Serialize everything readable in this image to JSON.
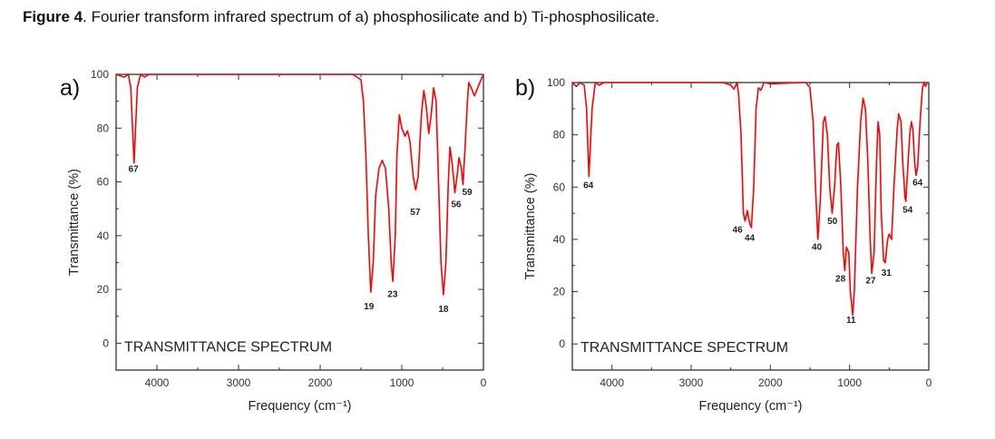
{
  "caption": {
    "label": "Figure 4",
    "text": ". Fourier transform infrared spectrum of a) phosphosilicate and b) Ti-phosphosilicate."
  },
  "chart_data": [
    {
      "type": "line",
      "panel_label": "a)",
      "annotation": "TRANSMITTANCE SPECTRUM",
      "xlabel": "Frequency (cm⁻¹)",
      "ylabel": "Transmittance (%)",
      "xlim": [
        4500,
        0
      ],
      "ylim": [
        -10,
        100
      ],
      "xticks": [
        4000,
        3000,
        2000,
        1000,
        0
      ],
      "yticks": [
        0,
        20,
        40,
        60,
        80,
        100
      ],
      "color": "#ff0000",
      "series": [
        {
          "name": "phosphosilicate",
          "points": [
            [
              4500,
              100
            ],
            [
              4400,
              99
            ],
            [
              4350,
              100
            ],
            [
              4320,
              95
            ],
            [
              4280,
              67
            ],
            [
              4240,
              95
            ],
            [
              4200,
              100
            ],
            [
              4150,
              99
            ],
            [
              4100,
              100
            ],
            [
              1600,
              100
            ],
            [
              1550,
              99
            ],
            [
              1500,
              98
            ],
            [
              1470,
              90
            ],
            [
              1440,
              70
            ],
            [
              1410,
              40
            ],
            [
              1380,
              19
            ],
            [
              1350,
              30
            ],
            [
              1320,
              55
            ],
            [
              1280,
              65
            ],
            [
              1240,
              68
            ],
            [
              1200,
              65
            ],
            [
              1160,
              50
            ],
            [
              1130,
              30
            ],
            [
              1110,
              23
            ],
            [
              1080,
              40
            ],
            [
              1060,
              70
            ],
            [
              1030,
              85
            ],
            [
              1000,
              80
            ],
            [
              960,
              77
            ],
            [
              930,
              79
            ],
            [
              900,
              75
            ],
            [
              860,
              62
            ],
            [
              830,
              57
            ],
            [
              800,
              62
            ],
            [
              760,
              85
            ],
            [
              730,
              94
            ],
            [
              700,
              88
            ],
            [
              670,
              78
            ],
            [
              640,
              85
            ],
            [
              610,
              95
            ],
            [
              580,
              90
            ],
            [
              550,
              60
            ],
            [
              520,
              30
            ],
            [
              490,
              18
            ],
            [
              460,
              30
            ],
            [
              430,
              60
            ],
            [
              410,
              73
            ],
            [
              380,
              66
            ],
            [
              350,
              56
            ],
            [
              320,
              63
            ],
            [
              300,
              69
            ],
            [
              270,
              65
            ],
            [
              250,
              59
            ],
            [
              230,
              70
            ],
            [
              200,
              88
            ],
            [
              180,
              97
            ],
            [
              150,
              95
            ],
            [
              110,
              92
            ],
            [
              70,
              95
            ],
            [
              30,
              98
            ],
            [
              0,
              100
            ]
          ]
        }
      ],
      "peak_labels": [
        {
          "text": "67",
          "x": 4287,
          "y": 65
        },
        {
          "text": "19",
          "x": 1403,
          "y": 14
        },
        {
          "text": "23",
          "x": 1113,
          "y": 18.5
        },
        {
          "text": "57",
          "x": 835,
          "y": 49
        },
        {
          "text": "18",
          "x": 490,
          "y": 13
        },
        {
          "text": "56",
          "x": 334,
          "y": 52
        },
        {
          "text": "59",
          "x": 200,
          "y": 56.5
        }
      ]
    },
    {
      "type": "line",
      "panel_label": "b)",
      "annotation": "TRANSMITTANCE SPECTRUM",
      "xlabel": "Frequency (cm⁻¹)",
      "ylabel": "Transmittance (%)",
      "xlim": [
        4500,
        0
      ],
      "ylim": [
        -10,
        100
      ],
      "xticks": [
        4000,
        3000,
        2000,
        1000,
        0
      ],
      "yticks": [
        0,
        20,
        40,
        60,
        80,
        100
      ],
      "color": "#ff0000",
      "series": [
        {
          "name": "Ti-phosphosilicate",
          "points": [
            [
              4500,
              100
            ],
            [
              4450,
              98.5
            ],
            [
              4400,
              100
            ],
            [
              4350,
              99
            ],
            [
              4320,
              90
            ],
            [
              4290,
              64
            ],
            [
              4250,
              90
            ],
            [
              4210,
              100
            ],
            [
              4160,
              99
            ],
            [
              4100,
              100
            ],
            [
              2600,
              100
            ],
            [
              2500,
              99
            ],
            [
              2460,
              97.5
            ],
            [
              2420,
              100
            ],
            [
              2400,
              95
            ],
            [
              2370,
              80
            ],
            [
              2340,
              50
            ],
            [
              2320,
              47
            ],
            [
              2290,
              51
            ],
            [
              2260,
              46
            ],
            [
              2240,
              44.5
            ],
            [
              2210,
              60
            ],
            [
              2180,
              90
            ],
            [
              2150,
              98
            ],
            [
              2120,
              97
            ],
            [
              2080,
              100
            ],
            [
              2000,
              99.5
            ],
            [
              1600,
              100
            ],
            [
              1550,
              100
            ],
            [
              1500,
              98
            ],
            [
              1460,
              85
            ],
            [
              1430,
              60
            ],
            [
              1400,
              40
            ],
            [
              1370,
              55
            ],
            [
              1330,
              85
            ],
            [
              1310,
              87
            ],
            [
              1280,
              80
            ],
            [
              1250,
              60
            ],
            [
              1220,
              50
            ],
            [
              1190,
              60
            ],
            [
              1160,
              76
            ],
            [
              1140,
              77
            ],
            [
              1110,
              60
            ],
            [
              1080,
              35
            ],
            [
              1060,
              28
            ],
            [
              1040,
              37
            ],
            [
              1010,
              35
            ],
            [
              990,
              20
            ],
            [
              960,
              11
            ],
            [
              940,
              20
            ],
            [
              900,
              60
            ],
            [
              860,
              85
            ],
            [
              830,
              94
            ],
            [
              800,
              90
            ],
            [
              770,
              70
            ],
            [
              740,
              40
            ],
            [
              720,
              27
            ],
            [
              690,
              35
            ],
            [
              660,
              70
            ],
            [
              640,
              85
            ],
            [
              620,
              80
            ],
            [
              600,
              50
            ],
            [
              570,
              32
            ],
            [
              550,
              31
            ],
            [
              520,
              40
            ],
            [
              500,
              42
            ],
            [
              470,
              40
            ],
            [
              440,
              60
            ],
            [
              400,
              82
            ],
            [
              380,
              88
            ],
            [
              350,
              85
            ],
            [
              330,
              70
            ],
            [
              300,
              56
            ],
            [
              290,
              54.5
            ],
            [
              270,
              65
            ],
            [
              240,
              80
            ],
            [
              220,
              85
            ],
            [
              200,
              82
            ],
            [
              180,
              70
            ],
            [
              160,
              64.5
            ],
            [
              140,
              68
            ],
            [
              110,
              85
            ],
            [
              80,
              98
            ],
            [
              60,
              100
            ],
            [
              40,
              98.5
            ],
            [
              20,
              100
            ]
          ]
        }
      ],
      "peak_labels": [
        {
          "text": "64",
          "x": 4298,
          "y": 61
        },
        {
          "text": "46",
          "x": 2415,
          "y": 44
        },
        {
          "text": "44",
          "x": 2261,
          "y": 40.8
        },
        {
          "text": "40",
          "x": 1413,
          "y": 37.3
        },
        {
          "text": "50",
          "x": 1218,
          "y": 47.3
        },
        {
          "text": "28",
          "x": 1115,
          "y": 25.2
        },
        {
          "text": "11",
          "x": 982,
          "y": 9.5
        },
        {
          "text": "27",
          "x": 734,
          "y": 24.5
        },
        {
          "text": "31",
          "x": 535,
          "y": 27.4
        },
        {
          "text": "54",
          "x": 267,
          "y": 51.6
        },
        {
          "text": "64",
          "x": 141,
          "y": 62
        }
      ]
    }
  ]
}
